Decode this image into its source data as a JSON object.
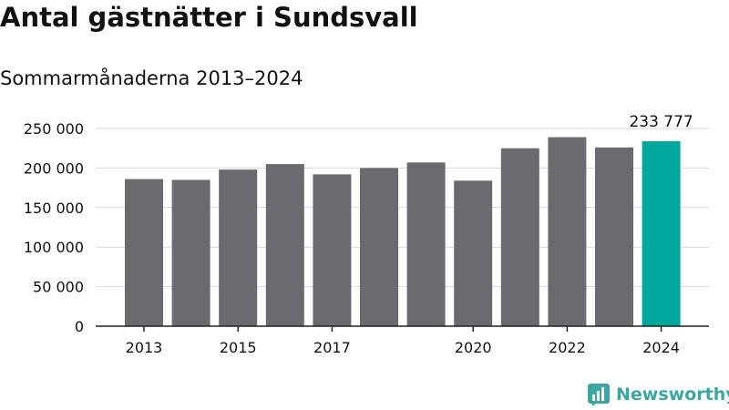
{
  "title": "Antal gästnätter i Sundsvall",
  "subtitle": "Sommarmånaderna 2013–2024",
  "brand": {
    "name": "Newsworthy",
    "icon": "newsworthy-logo-icon"
  },
  "colors": {
    "bar": "#6b6a70",
    "highlight": "#00a79d",
    "grid": "#d9d9d9",
    "axis": "#222222",
    "text": "#111111"
  },
  "chart_data": {
    "type": "bar",
    "title": "Antal gästnätter i Sundsvall",
    "subtitle": "Sommarmånaderna 2013–2024",
    "xlabel": "",
    "ylabel": "",
    "categories": [
      "2013",
      "2014",
      "2015",
      "2016",
      "2017",
      "2018",
      "2019",
      "2020",
      "2021",
      "2022",
      "2023",
      "2024"
    ],
    "values": [
      186000,
      185000,
      198000,
      205000,
      192000,
      200000,
      207000,
      184000,
      225000,
      239000,
      226000,
      233777
    ],
    "highlight_index": 11,
    "x_tick_labels": [
      "2013",
      "2015",
      "2017",
      "2020",
      "2022",
      "2024"
    ],
    "y_ticks": [
      0,
      50000,
      100000,
      150000,
      200000,
      250000
    ],
    "y_tick_labels": [
      "0",
      "50 000",
      "100 000",
      "150 000",
      "200 000",
      "250 000"
    ],
    "ylim": [
      0,
      250000
    ],
    "data_labels": [
      {
        "category": "2024",
        "text": "233 777"
      }
    ],
    "grid": true
  }
}
